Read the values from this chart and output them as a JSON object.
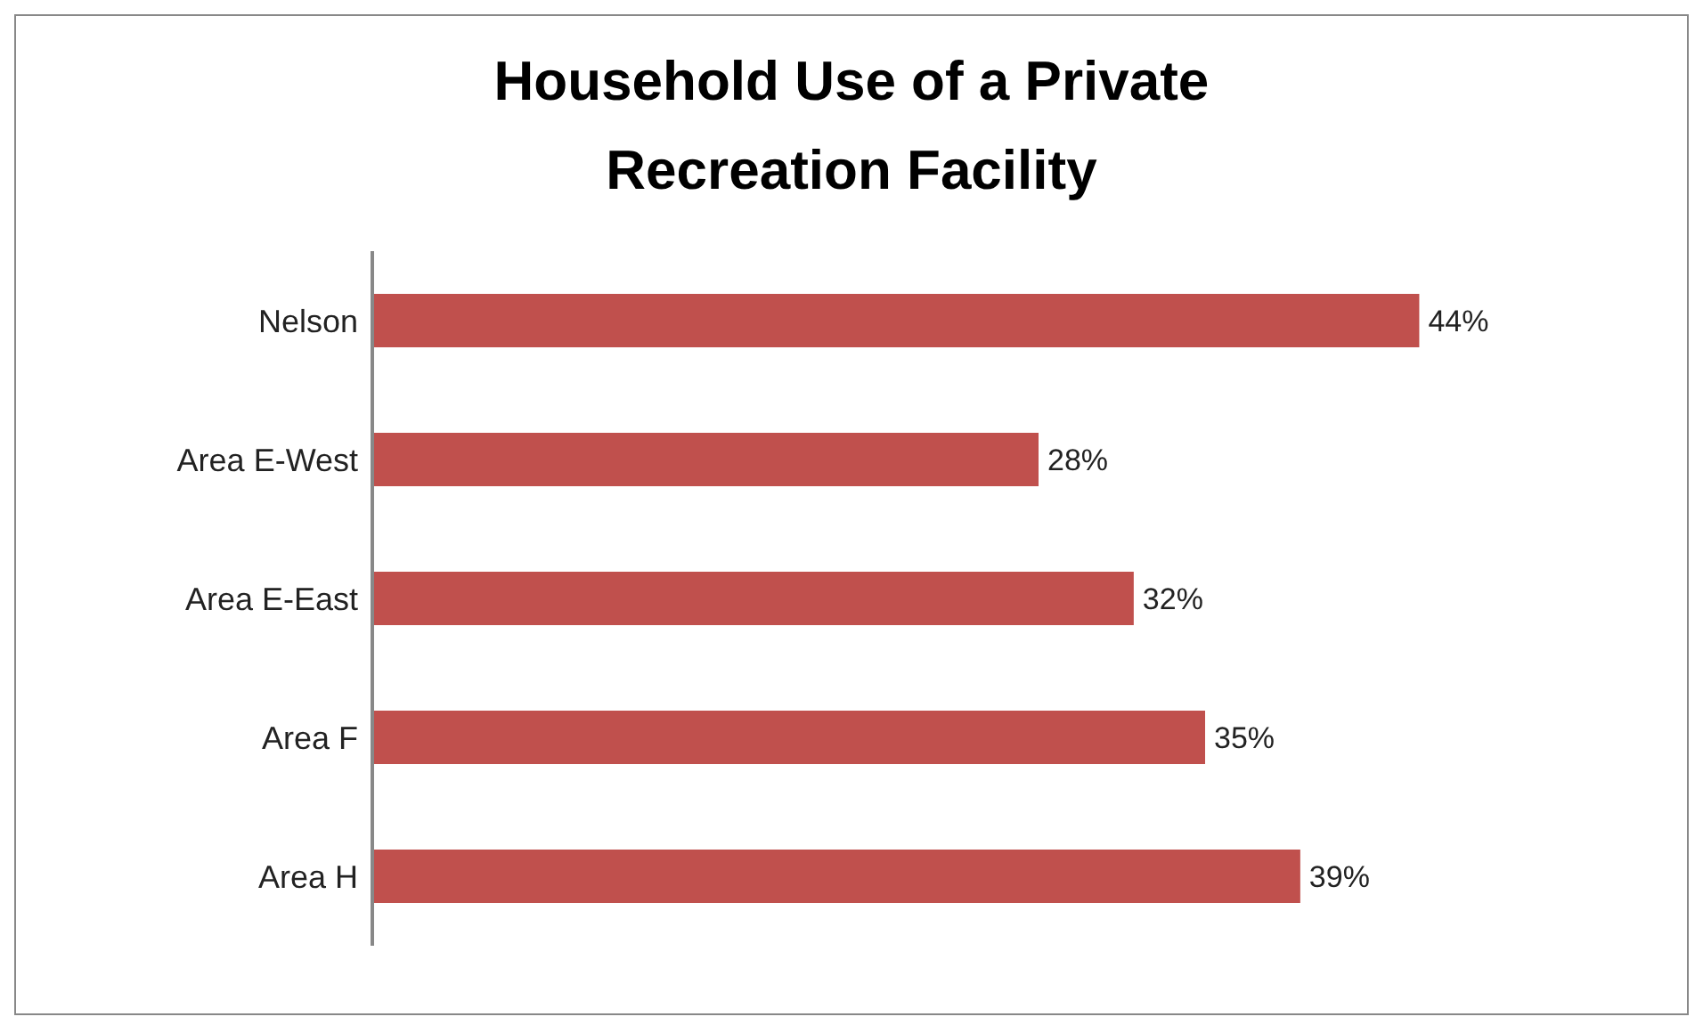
{
  "chart_data": {
    "type": "bar",
    "orientation": "horizontal",
    "title": "Household Use of a Private Recreation Facility",
    "categories": [
      "Nelson",
      "Area E-West",
      "Area E-East",
      "Area F",
      "Area H"
    ],
    "values": [
      44,
      28,
      32,
      35,
      39
    ],
    "value_labels": [
      "44%",
      "28%",
      "32%",
      "35%",
      "39%"
    ],
    "color": "#c0504d"
  }
}
